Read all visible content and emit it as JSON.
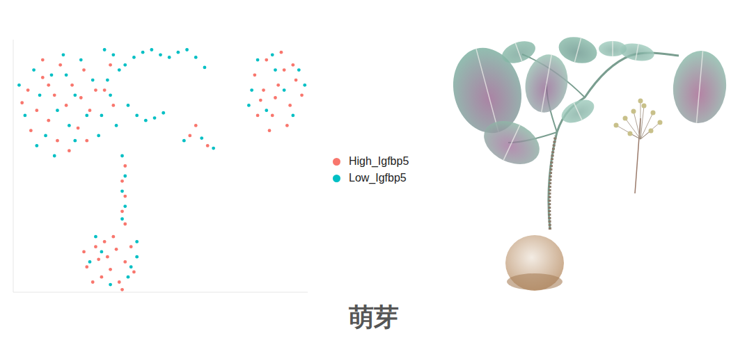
{
  "chart_data": {
    "type": "scatter",
    "marker": "circle",
    "tick_labels": false,
    "grid": false,
    "legend": "right",
    "xlim": [
      0,
      100
    ],
    "ylim": [
      0,
      100
    ],
    "series": [
      {
        "name": "High_Igfbp5",
        "color": "#F8766D",
        "x": [
          5,
          8,
          10,
          12,
          14,
          16,
          18,
          20,
          22,
          24,
          26,
          28,
          6,
          10,
          15,
          19,
          23,
          3,
          12,
          25,
          31,
          33,
          34,
          82,
          84,
          86,
          88,
          90,
          92,
          94,
          96,
          98,
          87,
          91,
          85,
          93,
          89,
          95,
          83,
          60,
          66,
          62,
          38,
          37,
          38,
          37,
          38,
          25,
          28,
          30,
          32,
          34,
          36,
          38,
          40,
          27,
          33,
          41,
          29,
          35,
          31,
          37,
          24
        ],
        "y": [
          80,
          72,
          85,
          68,
          78,
          90,
          74,
          82,
          65,
          88,
          72,
          80,
          64,
          92,
          60,
          56,
          77,
          75,
          82,
          60,
          80,
          90,
          74,
          86,
          76,
          92,
          70,
          82,
          88,
          74,
          84,
          78,
          64,
          95,
          80,
          66,
          77,
          90,
          70,
          62,
          58,
          66,
          50,
          44,
          38,
          32,
          27,
          10,
          18,
          6,
          14,
          22,
          4,
          12,
          18,
          4,
          9,
          8,
          13,
          17,
          20,
          1,
          16
        ]
      },
      {
        "name": "Low_Igfbp5",
        "color": "#00BFC4",
        "x": [
          4,
          7,
          9,
          11,
          13,
          15,
          17,
          19,
          21,
          23,
          25,
          27,
          29,
          8,
          2,
          14,
          21,
          18,
          30,
          32,
          34,
          35,
          33,
          36,
          31,
          38,
          41,
          44,
          47,
          50,
          53,
          56,
          59,
          62,
          65,
          42,
          45,
          48,
          51,
          39,
          81,
          83,
          86,
          89,
          92,
          95,
          97,
          99,
          80,
          88,
          58,
          64,
          68,
          37,
          38,
          37,
          38,
          37,
          26,
          30,
          33,
          39,
          42,
          42,
          40,
          28
        ],
        "y": [
          70,
          88,
          78,
          62,
          86,
          72,
          94,
          66,
          78,
          92,
          70,
          84,
          62,
          58,
          82,
          54,
          60,
          86,
          70,
          84,
          94,
          66,
          78,
          88,
          96,
          90,
          93,
          95,
          96,
          94,
          93,
          95,
          96,
          93,
          89,
          70,
          68,
          69,
          71,
          74,
          80,
          92,
          72,
          88,
          80,
          70,
          88,
          82,
          74,
          94,
          60,
          61,
          57,
          54,
          46,
          40,
          34,
          29,
          12,
          16,
          3,
          6,
          14,
          20,
          10,
          22
        ]
      }
    ]
  },
  "caption": "萌芽"
}
